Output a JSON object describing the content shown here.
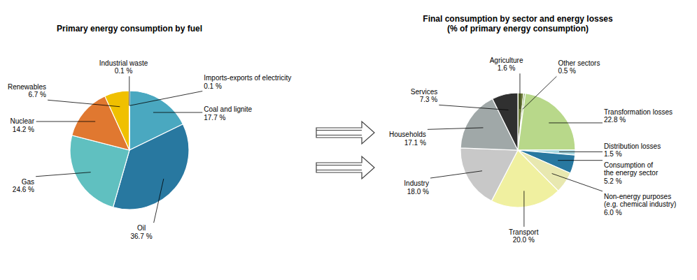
{
  "chart_data": [
    {
      "type": "pie",
      "title": "Primary energy consumption by fuel",
      "categories": [
        "Imports-exports of electricity",
        "Coal and lignite",
        "Oil",
        "Gas",
        "Nuclear",
        "Renewables",
        "Industrial waste"
      ],
      "values": [
        0.1,
        17.7,
        36.7,
        24.6,
        14.2,
        6.7,
        0.1
      ],
      "value_labels": [
        "0.1 %",
        "17.7 %",
        "36.7 %",
        "24.6 %",
        "14.2 %",
        "6.7 %",
        "0.1 %"
      ],
      "colors": [
        "#b0d8e0",
        "#4aa8c0",
        "#2878a0",
        "#60c0c0",
        "#e07830",
        "#f0c000",
        "#4a3010"
      ],
      "data_labels": true
    },
    {
      "type": "pie",
      "title": "Final consumption by sector and energy losses\n(% of primary energy consumption)",
      "categories": [
        "Agriculture",
        "Other sectors",
        "Transformation losses",
        "Distribution losses",
        "Consumption of\nthe energy sector",
        "Non-energy purposes\n(e.g. chemical industry)",
        "Transport",
        "Industry",
        "Households",
        "Services"
      ],
      "values": [
        1.6,
        0.5,
        22.8,
        1.5,
        5.2,
        6.0,
        20.0,
        18.0,
        17.1,
        7.3
      ],
      "value_labels": [
        "1.6 %",
        "0.5 %",
        "22.8 %",
        "1.5 %",
        "5.2 %",
        "6.0 %",
        "20.0 %",
        "18.0 %",
        "17.1 %",
        "7.3 %"
      ],
      "colors": [
        "#6b7a3a",
        "#8db060",
        "#b8d88a",
        "#a8d8e0",
        "#2878a0",
        "#e8e8b0",
        "#f0f0a0",
        "#c8c8c8",
        "#a0a8a8",
        "#303030"
      ],
      "data_labels": true
    }
  ]
}
